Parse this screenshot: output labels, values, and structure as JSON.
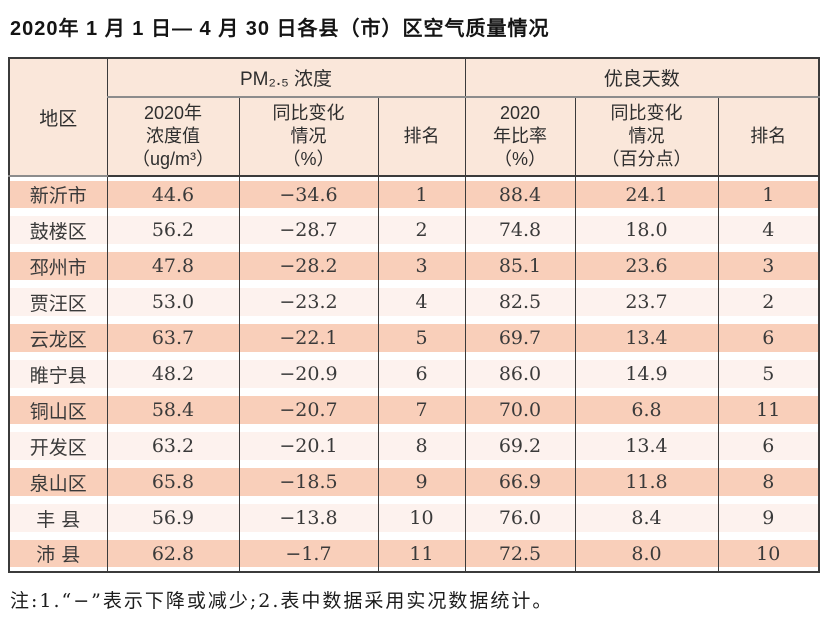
{
  "title": "2020年 1 月 1 日— 4 月 30 日各县（市）区空气质量情况",
  "table": {
    "corner_header": "地区",
    "groups": [
      {
        "label": "PM₂.₅ 浓度"
      },
      {
        "label": "优良天数"
      }
    ],
    "sub_headers": [
      "2020年\n浓度值\n（ug/m³）",
      "同比变化\n情况\n（%）",
      "排名",
      "2020\n年比率\n（%）",
      "同比变化\n情况\n（百分点）",
      "排名"
    ],
    "rows": [
      {
        "region": "新沂市",
        "pm_value": "44.6",
        "pm_change": "−34.6",
        "pm_rank": "1",
        "good_ratio": "88.4",
        "good_change": "24.1",
        "good_rank": "1"
      },
      {
        "region": "鼓楼区",
        "pm_value": "56.2",
        "pm_change": "−28.7",
        "pm_rank": "2",
        "good_ratio": "74.8",
        "good_change": "18.0",
        "good_rank": "4"
      },
      {
        "region": "邳州市",
        "pm_value": "47.8",
        "pm_change": "−28.2",
        "pm_rank": "3",
        "good_ratio": "85.1",
        "good_change": "23.6",
        "good_rank": "3"
      },
      {
        "region": "贾汪区",
        "pm_value": "53.0",
        "pm_change": "−23.2",
        "pm_rank": "4",
        "good_ratio": "82.5",
        "good_change": "23.7",
        "good_rank": "2"
      },
      {
        "region": "云龙区",
        "pm_value": "63.7",
        "pm_change": "−22.1",
        "pm_rank": "5",
        "good_ratio": "69.7",
        "good_change": "13.4",
        "good_rank": "6"
      },
      {
        "region": "睢宁县",
        "pm_value": "48.2",
        "pm_change": "−20.9",
        "pm_rank": "6",
        "good_ratio": "86.0",
        "good_change": "14.9",
        "good_rank": "5"
      },
      {
        "region": "铜山区",
        "pm_value": "58.4",
        "pm_change": "−20.7",
        "pm_rank": "7",
        "good_ratio": "70.0",
        "good_change": "6.8",
        "good_rank": "11"
      },
      {
        "region": "开发区",
        "pm_value": "63.2",
        "pm_change": "−20.1",
        "pm_rank": "8",
        "good_ratio": "69.2",
        "good_change": "13.4",
        "good_rank": "6"
      },
      {
        "region": "泉山区",
        "pm_value": "65.8",
        "pm_change": "−18.5",
        "pm_rank": "9",
        "good_ratio": "66.9",
        "good_change": "11.8",
        "good_rank": "8"
      },
      {
        "region": "丰 县",
        "pm_value": "56.9",
        "pm_change": "−13.8",
        "pm_rank": "10",
        "good_ratio": "76.0",
        "good_change": "8.4",
        "good_rank": "9"
      },
      {
        "region": "沛 县",
        "pm_value": "62.8",
        "pm_change": "−1.7",
        "pm_rank": "11",
        "good_ratio": "72.5",
        "good_change": "8.0",
        "good_rank": "10"
      }
    ]
  },
  "note": "注:1.“−”表示下降或减少;2.表中数据采用实况数据统计。",
  "colors": {
    "header_bg": "#fae7da",
    "row_odd": "#f9cfba",
    "row_even": "#fdf2ee",
    "border_dark": "#3b3b3b",
    "border_gray": "#8c8c8c",
    "text_dark": "#2e2e2e"
  }
}
